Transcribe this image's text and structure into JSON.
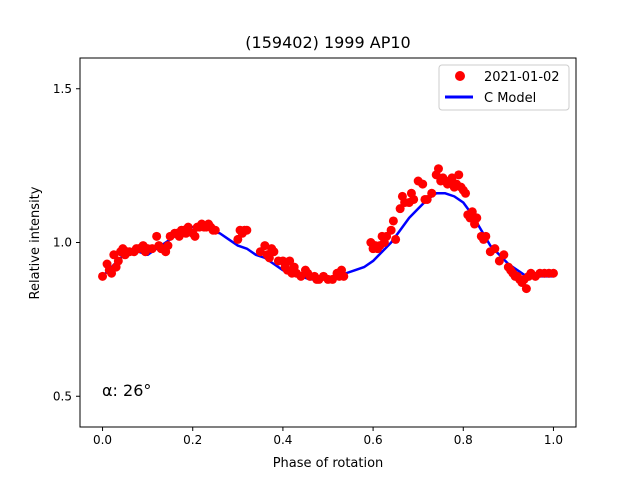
{
  "chart_data": {
    "type": "scatter",
    "title": "(159402) 1999 AP10",
    "xlabel": "Phase of rotation",
    "ylabel": "Relative intensity",
    "xlim": [
      -0.05,
      1.05
    ],
    "ylim": [
      0.4,
      1.6
    ],
    "xticks": [
      0.0,
      0.2,
      0.4,
      0.6,
      0.8,
      1.0
    ],
    "xtick_labels": [
      "0.0",
      "0.2",
      "0.4",
      "0.6",
      "0.8",
      "1.0"
    ],
    "yticks": [
      0.5,
      1.0,
      1.5
    ],
    "ytick_labels": [
      "0.5",
      "1.0",
      "1.5"
    ],
    "grid": false,
    "legend_position": "top-right",
    "annotation": "α: 26°",
    "series": [
      {
        "name": "2021-01-02",
        "kind": "scatter",
        "color": "#ff0000",
        "x": [
          0.0,
          0.01,
          0.015,
          0.02,
          0.025,
          0.03,
          0.035,
          0.04,
          0.045,
          0.05,
          0.055,
          0.06,
          0.07,
          0.075,
          0.08,
          0.09,
          0.095,
          0.1,
          0.11,
          0.12,
          0.125,
          0.13,
          0.14,
          0.145,
          0.15,
          0.16,
          0.165,
          0.17,
          0.175,
          0.18,
          0.185,
          0.19,
          0.2,
          0.205,
          0.21,
          0.215,
          0.22,
          0.225,
          0.23,
          0.235,
          0.24,
          0.245,
          0.25,
          0.3,
          0.305,
          0.31,
          0.315,
          0.32,
          0.35,
          0.36,
          0.365,
          0.37,
          0.375,
          0.38,
          0.39,
          0.4,
          0.405,
          0.41,
          0.415,
          0.42,
          0.425,
          0.43,
          0.44,
          0.45,
          0.455,
          0.46,
          0.47,
          0.475,
          0.48,
          0.49,
          0.5,
          0.51,
          0.52,
          0.525,
          0.53,
          0.535,
          0.595,
          0.6,
          0.605,
          0.61,
          0.615,
          0.62,
          0.625,
          0.63,
          0.64,
          0.645,
          0.65,
          0.66,
          0.665,
          0.67,
          0.68,
          0.685,
          0.69,
          0.7,
          0.71,
          0.715,
          0.72,
          0.73,
          0.74,
          0.745,
          0.75,
          0.755,
          0.76,
          0.765,
          0.77,
          0.775,
          0.78,
          0.785,
          0.79,
          0.795,
          0.8,
          0.805,
          0.81,
          0.815,
          0.82,
          0.825,
          0.83,
          0.84,
          0.845,
          0.85,
          0.86,
          0.87,
          0.88,
          0.89,
          0.9,
          0.905,
          0.91,
          0.915,
          0.92,
          0.925,
          0.93,
          0.935,
          0.94,
          0.945,
          0.95,
          0.96,
          0.97,
          0.98,
          0.99,
          1.0
        ],
        "y": [
          0.89,
          0.93,
          0.91,
          0.9,
          0.96,
          0.92,
          0.94,
          0.97,
          0.98,
          0.96,
          0.97,
          0.97,
          0.97,
          0.98,
          0.98,
          0.99,
          0.97,
          0.98,
          0.98,
          1.02,
          0.99,
          0.98,
          0.97,
          0.99,
          1.02,
          1.03,
          1.03,
          1.02,
          1.04,
          1.04,
          1.03,
          1.05,
          1.03,
          1.02,
          1.05,
          1.05,
          1.06,
          1.05,
          1.05,
          1.06,
          1.05,
          1.04,
          1.04,
          1.01,
          1.04,
          1.03,
          1.04,
          1.04,
          0.97,
          0.99,
          0.96,
          0.95,
          0.98,
          0.97,
          0.94,
          0.94,
          0.92,
          0.91,
          0.94,
          0.9,
          0.92,
          0.9,
          0.89,
          0.91,
          0.9,
          0.89,
          0.89,
          0.88,
          0.88,
          0.89,
          0.88,
          0.88,
          0.9,
          0.89,
          0.91,
          0.89,
          1.0,
          0.98,
          0.99,
          0.98,
          0.99,
          1.02,
          1.0,
          1.02,
          1.04,
          1.07,
          1.01,
          1.11,
          1.15,
          1.13,
          1.13,
          1.16,
          1.14,
          1.2,
          1.19,
          1.14,
          1.14,
          1.16,
          1.22,
          1.24,
          1.2,
          1.21,
          1.2,
          1.19,
          1.2,
          1.21,
          1.18,
          1.19,
          1.22,
          1.18,
          1.17,
          1.16,
          1.09,
          1.08,
          1.1,
          1.06,
          1.08,
          1.02,
          1.01,
          1.02,
          0.97,
          0.98,
          0.94,
          0.96,
          0.92,
          0.91,
          0.9,
          0.89,
          0.89,
          0.88,
          0.87,
          0.88,
          0.85,
          0.89,
          0.9,
          0.89,
          0.9,
          0.9,
          0.9,
          0.9
        ]
      },
      {
        "name": "C Model",
        "kind": "line",
        "color": "#0000ff",
        "x": [
          0.0,
          0.02,
          0.04,
          0.06,
          0.08,
          0.1,
          0.12,
          0.14,
          0.16,
          0.18,
          0.2,
          0.22,
          0.24,
          0.26,
          0.28,
          0.3,
          0.32,
          0.34,
          0.36,
          0.38,
          0.4,
          0.42,
          0.44,
          0.46,
          0.48,
          0.5,
          0.52,
          0.54,
          0.56,
          0.58,
          0.6,
          0.62,
          0.64,
          0.66,
          0.68,
          0.7,
          0.72,
          0.74,
          0.76,
          0.78,
          0.8,
          0.82,
          0.84,
          0.86,
          0.88,
          0.9,
          0.92,
          0.94,
          0.96,
          0.98,
          1.0
        ],
        "y": [
          0.89,
          0.92,
          0.95,
          0.97,
          0.97,
          0.96,
          0.98,
          1.0,
          1.02,
          1.04,
          1.05,
          1.05,
          1.04,
          1.03,
          1.01,
          0.99,
          0.98,
          0.96,
          0.95,
          0.93,
          0.91,
          0.9,
          0.89,
          0.88,
          0.88,
          0.88,
          0.89,
          0.9,
          0.91,
          0.92,
          0.94,
          0.97,
          1.0,
          1.04,
          1.08,
          1.11,
          1.14,
          1.16,
          1.16,
          1.15,
          1.13,
          1.09,
          1.04,
          0.99,
          0.96,
          0.93,
          0.91,
          0.89,
          0.89,
          0.89,
          0.89
        ]
      }
    ]
  }
}
